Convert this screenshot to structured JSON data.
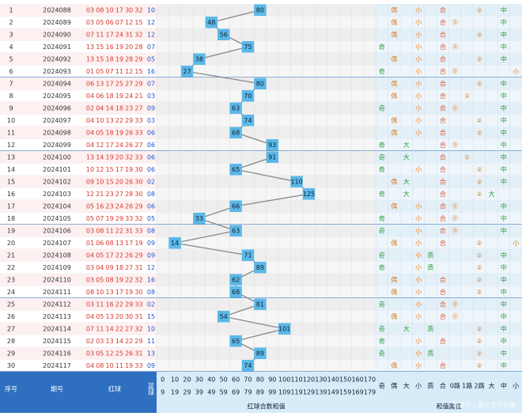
{
  "table": {
    "rows": [
      {
        "no": "1",
        "issue": "2024088",
        "reds": [
          "03",
          "08",
          "10",
          "17",
          "30",
          "32"
        ],
        "blue": "10",
        "value": 80,
        "attrs": [
          null,
          "偶",
          null,
          "小",
          null,
          "合",
          null,
          null,
          "②",
          null,
          "中",
          null
        ]
      },
      {
        "no": "2",
        "issue": "2024089",
        "reds": [
          "03",
          "05",
          "06",
          "07",
          "12",
          "15"
        ],
        "blue": "12",
        "value": 48,
        "attrs": [
          null,
          "偶",
          null,
          "小",
          null,
          "合",
          "⓪",
          null,
          null,
          null,
          "中",
          null
        ]
      },
      {
        "no": "3",
        "issue": "2024090",
        "reds": [
          "07",
          "11",
          "17",
          "24",
          "31",
          "32"
        ],
        "blue": "12",
        "value": 56,
        "attrs": [
          null,
          "偶",
          null,
          "小",
          null,
          "合",
          null,
          null,
          "②",
          null,
          "中",
          null
        ]
      },
      {
        "no": "4",
        "issue": "2024091",
        "reds": [
          "13",
          "15",
          "16",
          "19",
          "20",
          "28"
        ],
        "blue": "07",
        "value": 75,
        "attrs": [
          "奇",
          null,
          null,
          "小",
          null,
          "合",
          "⓪",
          null,
          null,
          null,
          "中",
          null
        ]
      },
      {
        "no": "5",
        "issue": "2024092",
        "reds": [
          "13",
          "15",
          "18",
          "19",
          "28",
          "29"
        ],
        "blue": "05",
        "value": 38,
        "attrs": [
          null,
          "偶",
          null,
          "小",
          null,
          "合",
          null,
          null,
          "②",
          null,
          "中",
          null
        ]
      },
      {
        "no": "6",
        "issue": "2024093",
        "reds": [
          "01",
          "05",
          "07",
          "11",
          "12",
          "15"
        ],
        "blue": "16",
        "value": 27,
        "attrs": [
          "奇",
          null,
          null,
          "小",
          null,
          "合",
          "⓪",
          null,
          null,
          null,
          null,
          "小"
        ]
      },
      {
        "no": "7",
        "issue": "2024094",
        "reds": [
          "06",
          "13",
          "17",
          "25",
          "27",
          "29"
        ],
        "blue": "07",
        "value": 80,
        "attrs": [
          null,
          "偶",
          null,
          "小",
          null,
          "合",
          null,
          null,
          "②",
          null,
          "中",
          null
        ]
      },
      {
        "no": "8",
        "issue": "2024095",
        "reds": [
          "04",
          "06",
          "18",
          "19",
          "24",
          "21"
        ],
        "blue": "03",
        "value": 70,
        "attrs": [
          null,
          "偶",
          null,
          "小",
          null,
          "合",
          null,
          "①",
          null,
          null,
          "中",
          null
        ]
      },
      {
        "no": "9",
        "issue": "2024096",
        "reds": [
          "02",
          "04",
          "14",
          "18",
          "23",
          "27"
        ],
        "blue": "09",
        "value": 63,
        "attrs": [
          "奇",
          null,
          null,
          "小",
          null,
          "合",
          "⓪",
          null,
          null,
          null,
          "中",
          null
        ]
      },
      {
        "no": "10",
        "issue": "2024097",
        "reds": [
          "04",
          "10",
          "13",
          "22",
          "29",
          "33"
        ],
        "blue": "03",
        "value": 74,
        "attrs": [
          null,
          "偶",
          null,
          "小",
          null,
          "合",
          null,
          null,
          "②",
          null,
          "中",
          null
        ]
      },
      {
        "no": "11",
        "issue": "2024098",
        "reds": [
          "04",
          "05",
          "18",
          "19",
          "26",
          "33"
        ],
        "blue": "06",
        "value": 68,
        "attrs": [
          null,
          "偶",
          null,
          "小",
          null,
          "合",
          null,
          null,
          "②",
          null,
          "中",
          null
        ]
      },
      {
        "no": "12",
        "issue": "2024099",
        "reds": [
          "04",
          "12",
          "17",
          "24",
          "26",
          "27"
        ],
        "blue": "06",
        "value": 93,
        "attrs": [
          "奇",
          null,
          "大",
          null,
          null,
          "合",
          "⓪",
          null,
          null,
          null,
          "中",
          null
        ]
      },
      {
        "no": "13",
        "issue": "2024100",
        "reds": [
          "13",
          "14",
          "19",
          "20",
          "32",
          "33"
        ],
        "blue": "06",
        "value": 91,
        "attrs": [
          "奇",
          null,
          "大",
          null,
          null,
          "合",
          null,
          "①",
          null,
          null,
          "中",
          null
        ]
      },
      {
        "no": "14",
        "issue": "2024101",
        "reds": [
          "10",
          "12",
          "15",
          "17",
          "19",
          "30"
        ],
        "blue": "06",
        "value": 65,
        "attrs": [
          "奇",
          null,
          null,
          "小",
          null,
          "合",
          null,
          null,
          "②",
          null,
          "中",
          null
        ]
      },
      {
        "no": "15",
        "issue": "2024102",
        "reds": [
          "09",
          "10",
          "15",
          "20",
          "26",
          "30"
        ],
        "blue": "02",
        "value": 110,
        "attrs": [
          null,
          "偶",
          "大",
          null,
          null,
          "合",
          null,
          null,
          "②",
          null,
          "中",
          null
        ]
      },
      {
        "no": "16",
        "issue": "2024103",
        "reds": [
          "12",
          "21",
          "23",
          "27",
          "28",
          "30"
        ],
        "blue": "08",
        "value": 125,
        "attrs": [
          "奇",
          null,
          "大",
          null,
          null,
          "合",
          null,
          null,
          "②",
          "大",
          null,
          null
        ]
      },
      {
        "no": "17",
        "issue": "2024104",
        "reds": [
          "05",
          "16",
          "23",
          "24",
          "26",
          "29"
        ],
        "blue": "06",
        "value": 66,
        "attrs": [
          null,
          "偶",
          null,
          "小",
          null,
          "合",
          "⓪",
          null,
          null,
          null,
          "中",
          null
        ]
      },
      {
        "no": "18",
        "issue": "2024105",
        "reds": [
          "05",
          "07",
          "19",
          "29",
          "33",
          "32"
        ],
        "blue": "05",
        "value": 33,
        "attrs": [
          "奇",
          null,
          null,
          "小",
          null,
          "合",
          "⓪",
          null,
          null,
          null,
          "中",
          null
        ]
      },
      {
        "no": "19",
        "issue": "2024106",
        "reds": [
          "03",
          "08",
          "11",
          "22",
          "31",
          "33"
        ],
        "blue": "08",
        "value": 63,
        "attrs": [
          "奇",
          null,
          null,
          "小",
          null,
          "合",
          "⓪",
          null,
          null,
          null,
          "中",
          null
        ]
      },
      {
        "no": "20",
        "issue": "2024107",
        "reds": [
          "01",
          "06",
          "08",
          "13",
          "17",
          "19"
        ],
        "blue": "09",
        "value": 14,
        "attrs": [
          null,
          "偶",
          null,
          "小",
          null,
          "合",
          null,
          null,
          "②",
          null,
          null,
          "小"
        ]
      },
      {
        "no": "21",
        "issue": "2024108",
        "reds": [
          "04",
          "05",
          "17",
          "22",
          "26",
          "29"
        ],
        "blue": "09",
        "value": 71,
        "attrs": [
          "奇",
          null,
          null,
          "小",
          "质",
          null,
          null,
          null,
          "②",
          null,
          "中",
          null
        ]
      },
      {
        "no": "22",
        "issue": "2024109",
        "reds": [
          "03",
          "04",
          "09",
          "18",
          "27",
          "31"
        ],
        "blue": "12",
        "value": 89,
        "attrs": [
          "奇",
          null,
          null,
          "小",
          "质",
          null,
          null,
          null,
          "②",
          null,
          "中",
          null
        ]
      },
      {
        "no": "23",
        "issue": "2024110",
        "reds": [
          "03",
          "05",
          "08",
          "19",
          "22",
          "32"
        ],
        "blue": "16",
        "value": 62,
        "attrs": [
          null,
          "偶",
          null,
          "小",
          null,
          "合",
          null,
          null,
          "②",
          null,
          "中",
          null
        ]
      },
      {
        "no": "24",
        "issue": "2024111",
        "reds": [
          "08",
          "10",
          "13",
          "17",
          "19",
          "30"
        ],
        "blue": "08",
        "value": 68,
        "attrs": [
          null,
          "偶",
          null,
          "小",
          null,
          "合",
          null,
          null,
          "②",
          null,
          "中",
          null
        ]
      },
      {
        "no": "25",
        "issue": "2024112",
        "reds": [
          "03",
          "11",
          "16",
          "22",
          "29",
          "33"
        ],
        "blue": "02",
        "value": 81,
        "attrs": [
          "奇",
          null,
          null,
          "小",
          null,
          "合",
          "⓪",
          null,
          null,
          null,
          "中",
          null
        ]
      },
      {
        "no": "26",
        "issue": "2024113",
        "reds": [
          "04",
          "05",
          "13",
          "20",
          "30",
          "31"
        ],
        "blue": "15",
        "value": 54,
        "attrs": [
          null,
          "偶",
          null,
          "小",
          null,
          "合",
          "⓪",
          null,
          null,
          null,
          "中",
          null
        ]
      },
      {
        "no": "27",
        "issue": "2024114",
        "reds": [
          "07",
          "11",
          "14",
          "22",
          "27",
          "32"
        ],
        "blue": "10",
        "value": 101,
        "attrs": [
          "奇",
          null,
          "大",
          null,
          "质",
          null,
          null,
          null,
          "②",
          null,
          "中",
          null
        ]
      },
      {
        "no": "28",
        "issue": "2024115",
        "reds": [
          "02",
          "03",
          "13",
          "14",
          "22",
          "29"
        ],
        "blue": "11",
        "value": 65,
        "attrs": [
          "奇",
          null,
          null,
          "小",
          null,
          "合",
          null,
          null,
          "②",
          null,
          "中",
          null
        ]
      },
      {
        "no": "29",
        "issue": "2024116",
        "reds": [
          "03",
          "05",
          "12",
          "25",
          "26",
          "31"
        ],
        "blue": "13",
        "value": 89,
        "attrs": [
          "奇",
          null,
          null,
          "小",
          "质",
          null,
          null,
          null,
          "②",
          null,
          "中",
          null
        ]
      },
      {
        "no": "30",
        "issue": "2024117",
        "reds": [
          "04",
          "08",
          "10",
          "11",
          "19",
          "33"
        ],
        "blue": "09",
        "value": 74,
        "attrs": [
          null,
          "偶",
          null,
          "小",
          null,
          "合",
          null,
          null,
          "②",
          null,
          "中",
          null
        ]
      }
    ],
    "header": {
      "no": "序号",
      "issue": "期号",
      "red": "红球",
      "blue": "蓝球",
      "sum_title": "红球合数和值",
      "attr_title": "和值属性",
      "interval_starts": [
        0,
        10,
        20,
        30,
        40,
        50,
        60,
        70,
        80,
        90,
        100,
        110,
        120,
        130,
        140,
        150,
        160,
        170
      ],
      "interval_ends": [
        9,
        19,
        29,
        39,
        49,
        59,
        69,
        79,
        89,
        99,
        109,
        119,
        129,
        139,
        149,
        159,
        169,
        179
      ],
      "attr_labels": [
        "奇",
        "偶",
        "大",
        "小",
        "质",
        "合",
        "0路",
        "1路",
        "2路",
        "大",
        "中",
        "小"
      ]
    },
    "watermark": "网易号 | 南夕文学拾趣"
  }
}
